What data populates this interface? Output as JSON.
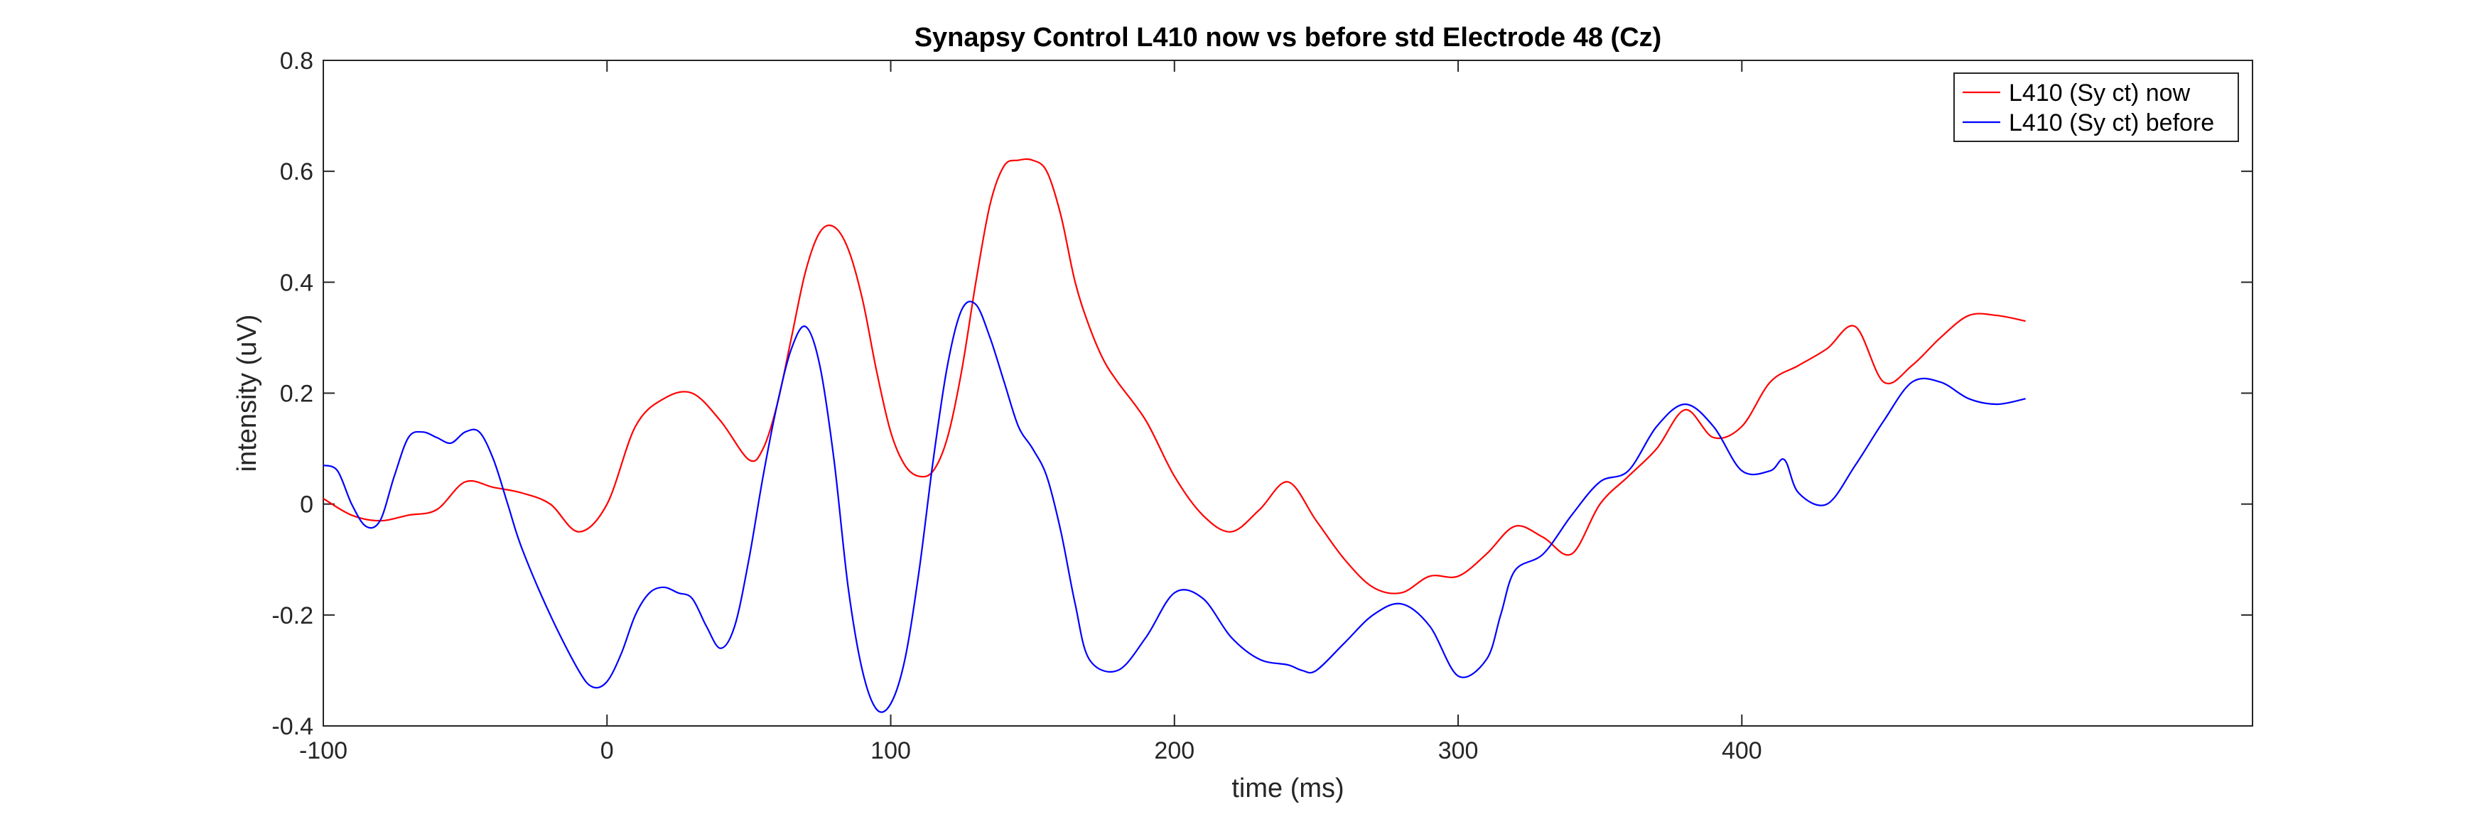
{
  "chart_data": {
    "type": "line",
    "title": "Synapsy Control L410 now vs before std Electrode 48 (Cz)",
    "xlabel": "time (ms)",
    "ylabel": "intensity (uV)",
    "xlim": [
      -100,
      580
    ],
    "ylim": [
      -0.4,
      0.8
    ],
    "xticks": [
      -100,
      0,
      100,
      200,
      300,
      400
    ],
    "yticks": [
      -0.4,
      -0.2,
      0,
      0.2,
      0.4,
      0.6,
      0.8
    ],
    "grid": false,
    "legend_position": "top-right",
    "series": [
      {
        "name": "L410 (Sy ct) now",
        "color": "#ff0000",
        "x": [
          -100,
          -90,
          -80,
          -70,
          -60,
          -50,
          -40,
          -30,
          -20,
          -10,
          0,
          10,
          20,
          30,
          40,
          50,
          55,
          60,
          65,
          70,
          75,
          80,
          85,
          90,
          95,
          100,
          105,
          110,
          115,
          120,
          125,
          130,
          135,
          140,
          145,
          150,
          155,
          160,
          165,
          170,
          175,
          180,
          190,
          200,
          210,
          220,
          230,
          240,
          250,
          260,
          270,
          280,
          290,
          300,
          310,
          320,
          330,
          340,
          350,
          360,
          370,
          380,
          390,
          400,
          410,
          420,
          430,
          440,
          450,
          460,
          470,
          480,
          490,
          500
        ],
        "y": [
          0.01,
          -0.02,
          -0.03,
          -0.02,
          -0.01,
          0.04,
          0.03,
          0.02,
          0.0,
          -0.05,
          0.0,
          0.14,
          0.19,
          0.2,
          0.15,
          0.08,
          0.1,
          0.18,
          0.3,
          0.42,
          0.49,
          0.5,
          0.46,
          0.37,
          0.24,
          0.13,
          0.07,
          0.05,
          0.06,
          0.12,
          0.24,
          0.4,
          0.54,
          0.61,
          0.62,
          0.62,
          0.6,
          0.52,
          0.4,
          0.32,
          0.26,
          0.22,
          0.15,
          0.05,
          -0.02,
          -0.05,
          -0.01,
          0.04,
          -0.03,
          -0.1,
          -0.15,
          -0.16,
          -0.13,
          -0.13,
          -0.09,
          -0.04,
          -0.06,
          -0.09,
          0.0,
          0.05,
          0.1,
          0.17,
          0.12,
          0.14,
          0.22,
          0.25,
          0.28,
          0.32,
          0.22,
          0.25,
          0.3,
          0.34,
          0.34,
          0.33
        ]
      },
      {
        "name": "L410 (Sy ct) before",
        "color": "#0000ff",
        "x": [
          -100,
          -95,
          -90,
          -85,
          -80,
          -75,
          -70,
          -65,
          -60,
          -55,
          -50,
          -45,
          -40,
          -35,
          -30,
          -20,
          -10,
          -5,
          0,
          5,
          10,
          15,
          20,
          25,
          30,
          35,
          40,
          45,
          50,
          55,
          60,
          65,
          70,
          75,
          80,
          85,
          90,
          95,
          100,
          105,
          110,
          115,
          120,
          125,
          130,
          135,
          140,
          145,
          150,
          155,
          160,
          165,
          170,
          180,
          190,
          200,
          210,
          220,
          230,
          240,
          245,
          250,
          260,
          270,
          280,
          290,
          300,
          310,
          315,
          320,
          330,
          340,
          350,
          360,
          370,
          380,
          390,
          400,
          410,
          415,
          420,
          430,
          440,
          450,
          460,
          470,
          480,
          490,
          500
        ],
        "y": [
          0.07,
          0.06,
          0.0,
          -0.04,
          -0.03,
          0.05,
          0.12,
          0.13,
          0.12,
          0.11,
          0.13,
          0.13,
          0.08,
          0.0,
          -0.08,
          -0.2,
          -0.3,
          -0.33,
          -0.32,
          -0.27,
          -0.2,
          -0.16,
          -0.15,
          -0.16,
          -0.17,
          -0.22,
          -0.26,
          -0.22,
          -0.1,
          0.05,
          0.18,
          0.28,
          0.32,
          0.25,
          0.08,
          -0.15,
          -0.3,
          -0.37,
          -0.36,
          -0.28,
          -0.12,
          0.08,
          0.25,
          0.35,
          0.36,
          0.3,
          0.22,
          0.14,
          0.1,
          0.05,
          -0.05,
          -0.18,
          -0.28,
          -0.3,
          -0.24,
          -0.16,
          -0.17,
          -0.24,
          -0.28,
          -0.29,
          -0.3,
          -0.3,
          -0.25,
          -0.2,
          -0.18,
          -0.22,
          -0.31,
          -0.28,
          -0.2,
          -0.12,
          -0.09,
          -0.02,
          0.04,
          0.06,
          0.14,
          0.18,
          0.14,
          0.06,
          0.06,
          0.08,
          0.02,
          0.0,
          0.07,
          0.15,
          0.22,
          0.22,
          0.19,
          0.18,
          0.19
        ]
      }
    ]
  }
}
